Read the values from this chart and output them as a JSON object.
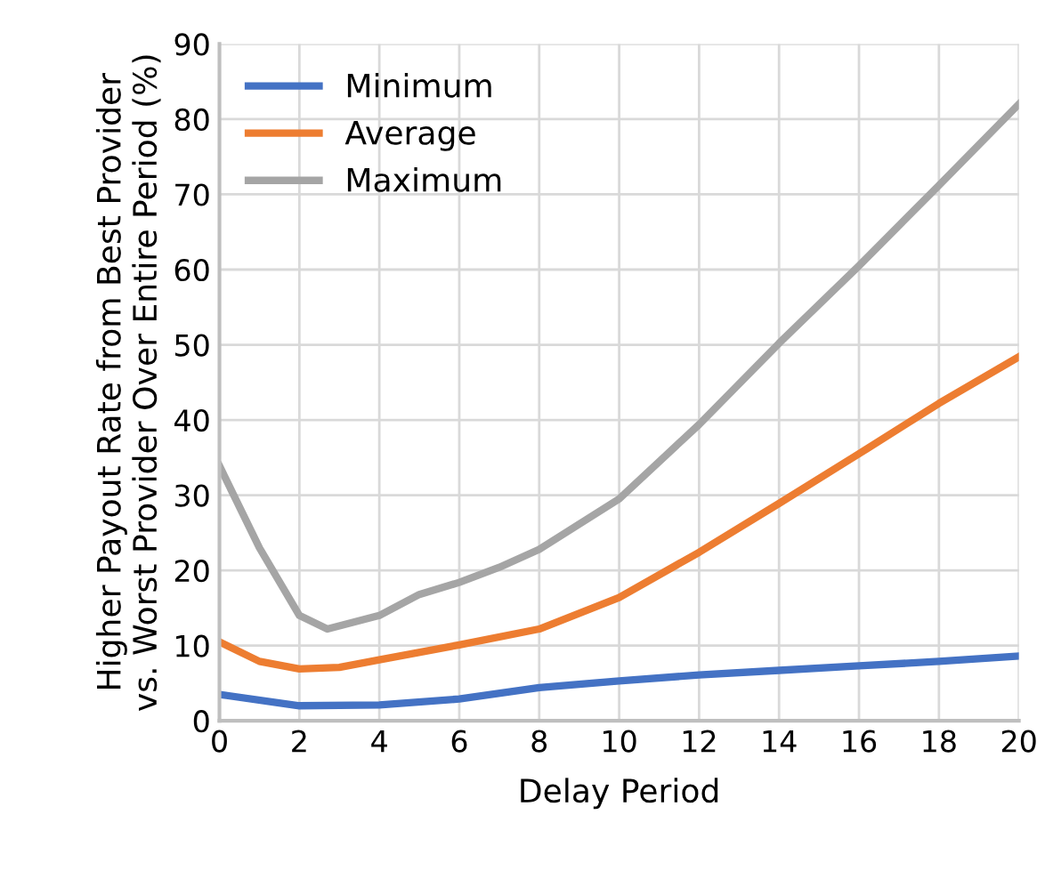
{
  "chart_data": {
    "type": "line",
    "xlabel": "Delay Period",
    "ylabel": "Higher Payout Rate from Best Provider\nvs. Worst Provider Over Entire Period (%)",
    "xlim": [
      0,
      20
    ],
    "xticks": [
      0,
      2,
      4,
      6,
      8,
      10,
      12,
      14,
      16,
      18,
      20
    ],
    "ylim": [
      0,
      90
    ],
    "yticks": [
      0,
      10,
      20,
      30,
      40,
      50,
      60,
      70,
      80,
      90
    ],
    "grid": true,
    "legend": "top left",
    "line_style": "solid",
    "marker": "none",
    "series": [
      {
        "name": "Minimum",
        "color": "#4472c4",
        "x": [
          0,
          2,
          4,
          6,
          8,
          10,
          12,
          14,
          16,
          18,
          20
        ],
        "values": [
          3.5,
          2.0,
          2.1,
          2.9,
          4.4,
          5.3,
          6.1,
          6.7,
          7.3,
          7.9,
          8.6
        ]
      },
      {
        "name": "Average",
        "color": "#ed7d31",
        "x": [
          0,
          1,
          2,
          3,
          4,
          6,
          8,
          10,
          12,
          14,
          16,
          18,
          20
        ],
        "values": [
          10.5,
          7.9,
          6.9,
          7.1,
          8.1,
          10.1,
          12.2,
          16.4,
          22.4,
          28.9,
          35.5,
          42.2,
          48.4
        ]
      },
      {
        "name": "Maximum",
        "color": "#a5a5a5",
        "x": [
          0,
          1,
          2,
          2.7,
          4,
          5,
          6,
          7,
          8,
          10,
          12,
          14,
          16,
          18,
          20
        ],
        "values": [
          33.9,
          23,
          14,
          12.2,
          14,
          16.8,
          18.4,
          20.4,
          22.8,
          29.5,
          39.4,
          50.2,
          60.5,
          71.2,
          82
        ]
      }
    ]
  }
}
